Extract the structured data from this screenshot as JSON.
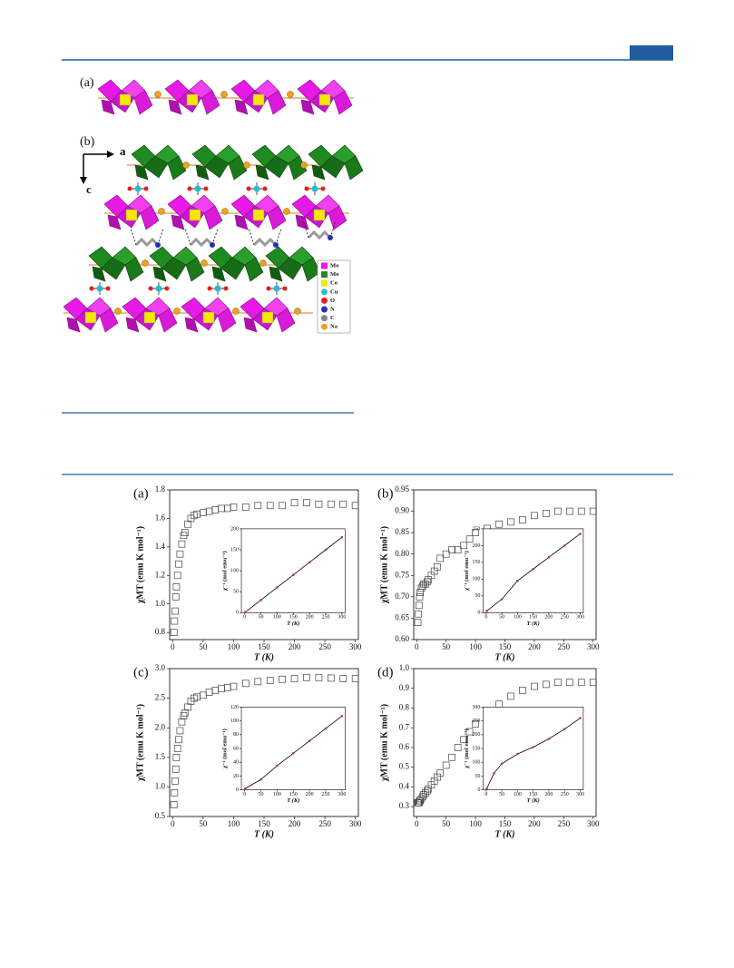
{
  "figure1": {
    "panel_a": "(a)",
    "panel_b": "(b)",
    "axis_a": "a",
    "axis_c": "c",
    "legend": [
      "Mo",
      "Mo",
      "Co",
      "Cu",
      "O",
      "N",
      "C",
      "Na"
    ]
  },
  "chart_data": [
    {
      "type": "scatter",
      "label": "(a)",
      "xlabel": "T (K)",
      "ylabel": "χMT (emu K mol⁻¹)",
      "marker_color": "#444444",
      "x": [
        2,
        3,
        4,
        5,
        6,
        8,
        10,
        12,
        15,
        18,
        20,
        25,
        30,
        35,
        40,
        50,
        60,
        70,
        80,
        90,
        100,
        120,
        140,
        160,
        180,
        200,
        220,
        240,
        260,
        280,
        300
      ],
      "values": [
        0.8,
        0.88,
        0.95,
        1.05,
        1.12,
        1.2,
        1.28,
        1.35,
        1.42,
        1.48,
        1.5,
        1.56,
        1.6,
        1.62,
        1.63,
        1.64,
        1.65,
        1.66,
        1.67,
        1.67,
        1.68,
        1.68,
        1.69,
        1.69,
        1.69,
        1.71,
        1.71,
        1.7,
        1.7,
        1.7,
        1.69
      ],
      "xlim": [
        -5,
        305
      ],
      "xticks": [
        0,
        50,
        100,
        150,
        200,
        250,
        300
      ],
      "ylim": [
        0.75,
        1.8
      ],
      "yticks": [
        0.8,
        {
          "value": 1.0,
          "label": "1.0"
        },
        1.2,
        1.4,
        1.6,
        1.8
      ],
      "inset": {
        "xlabel": "T (K)",
        "ylabel": "χ⁻¹ (mol emu⁻¹)",
        "line_color": "#000000",
        "marker_color": "#c0392b",
        "x": [
          2,
          50,
          100,
          150,
          200,
          250,
          300
        ],
        "values": [
          1,
          30,
          60,
          90,
          120,
          150,
          180
        ],
        "xlim": [
          -10,
          310
        ],
        "xticks": [
          0,
          50,
          100,
          150,
          200,
          250,
          300
        ],
        "ylim": [
          0,
          200
        ],
        "yticks": [
          0,
          50,
          100,
          150,
          200
        ]
      }
    },
    {
      "type": "scatter",
      "label": "(b)",
      "xlabel": "T (K)",
      "ylabel": "χMT (emu K mol⁻¹)",
      "marker_color": "#444444",
      "x": [
        2,
        3,
        4,
        5,
        6,
        8,
        10,
        12,
        15,
        18,
        20,
        25,
        30,
        35,
        40,
        50,
        60,
        70,
        80,
        90,
        100,
        120,
        140,
        160,
        180,
        200,
        220,
        240,
        260,
        280,
        300
      ],
      "values": [
        0.64,
        0.66,
        0.68,
        0.7,
        0.71,
        0.72,
        0.725,
        0.73,
        0.73,
        0.735,
        0.74,
        0.75,
        0.76,
        0.77,
        0.79,
        0.8,
        0.81,
        0.81,
        0.82,
        0.835,
        0.85,
        0.86,
        0.87,
        0.875,
        0.88,
        0.89,
        0.895,
        0.9,
        0.9,
        0.9,
        0.9
      ],
      "xlim": [
        -5,
        305
      ],
      "xticks": [
        0,
        50,
        100,
        150,
        200,
        250,
        300
      ],
      "ylim": [
        0.6,
        0.95
      ],
      "yticks": [
        {
          "value": 0.6,
          "label": "0.60"
        },
        0.65,
        {
          "value": 0.7,
          "label": "0.70"
        },
        0.75,
        {
          "value": 0.8,
          "label": "0.80"
        },
        0.85,
        {
          "value": 0.9,
          "label": "0.90"
        },
        0.95
      ],
      "inset": {
        "xlabel": "T (K)",
        "ylabel": "χ⁻¹ (mol emu⁻¹)",
        "line_color": "#000000",
        "marker_color": "#c0392b",
        "x": [
          2,
          50,
          100,
          150,
          200,
          250,
          300
        ],
        "values": [
          5,
          40,
          95,
          130,
          165,
          200,
          235
        ],
        "xlim": [
          -10,
          310
        ],
        "xticks": [
          0,
          50,
          100,
          150,
          200,
          250,
          300
        ],
        "ylim": [
          0,
          250
        ],
        "yticks": [
          0,
          50,
          100,
          150,
          200,
          250
        ]
      }
    },
    {
      "type": "scatter",
      "label": "(c)",
      "xlabel": "T (K)",
      "ylabel": "χMT (emu K mol⁻¹)",
      "marker_color": "#444444",
      "x": [
        2,
        3,
        4,
        5,
        6,
        8,
        10,
        12,
        15,
        18,
        20,
        25,
        30,
        35,
        40,
        50,
        60,
        70,
        80,
        90,
        100,
        120,
        140,
        160,
        180,
        200,
        220,
        240,
        260,
        280,
        300
      ],
      "values": [
        0.7,
        0.9,
        1.1,
        1.3,
        1.5,
        1.65,
        1.8,
        1.95,
        2.1,
        2.2,
        2.25,
        2.35,
        2.45,
        2.5,
        2.52,
        2.55,
        2.6,
        2.63,
        2.66,
        2.68,
        2.7,
        2.75,
        2.78,
        2.8,
        2.82,
        2.83,
        2.85,
        2.85,
        2.84,
        2.83,
        2.83
      ],
      "xlim": [
        -5,
        305
      ],
      "xticks": [
        0,
        50,
        100,
        150,
        200,
        250,
        300
      ],
      "ylim": [
        0.5,
        3.0
      ],
      "yticks": [
        0.5,
        {
          "value": 1.0,
          "label": "1.0"
        },
        1.5,
        {
          "value": 2.0,
          "label": "2.0"
        },
        2.5,
        {
          "value": 3.0,
          "label": "3.0"
        }
      ],
      "inset": {
        "xlabel": "T (K)",
        "ylabel": "χ⁻¹ (mol emu⁻¹)",
        "line_color": "#000000",
        "marker_color": "#c0392b",
        "x": [
          2,
          50,
          100,
          150,
          200,
          250,
          300
        ],
        "values": [
          2,
          15,
          35,
          53,
          71,
          89,
          107
        ],
        "xlim": [
          -10,
          310
        ],
        "xticks": [
          0,
          50,
          100,
          150,
          200,
          250,
          300
        ],
        "ylim": [
          0,
          120
        ],
        "yticks": [
          0,
          20,
          40,
          60,
          80,
          100,
          120
        ]
      }
    },
    {
      "type": "scatter",
      "label": "(d)",
      "xlabel": "T (K)",
      "ylabel": "χMT (emu K mol⁻¹)",
      "marker_color": "#444444",
      "x": [
        2,
        3,
        4,
        5,
        6,
        8,
        10,
        12,
        15,
        18,
        20,
        25,
        30,
        35,
        40,
        50,
        60,
        70,
        80,
        90,
        100,
        120,
        140,
        160,
        180,
        200,
        220,
        240,
        260,
        280,
        300
      ],
      "values": [
        0.32,
        0.32,
        0.32,
        0.33,
        0.33,
        0.34,
        0.35,
        0.36,
        0.37,
        0.38,
        0.39,
        0.41,
        0.43,
        0.45,
        0.47,
        0.51,
        0.55,
        0.6,
        0.64,
        0.68,
        0.72,
        0.77,
        0.82,
        0.86,
        0.89,
        0.91,
        0.92,
        0.93,
        0.93,
        0.93,
        0.93
      ],
      "xlim": [
        -5,
        305
      ],
      "xticks": [
        0,
        50,
        100,
        150,
        200,
        250,
        300
      ],
      "ylim": [
        0.25,
        1.0
      ],
      "yticks": [
        0.3,
        0.4,
        0.5,
        0.6,
        0.7,
        0.8,
        0.9,
        {
          "value": 1.0,
          "label": "1.0"
        }
      ],
      "inset": {
        "xlabel": "T (K)",
        "ylabel": "χ⁻¹ (mol emu⁻¹)",
        "line_color": "#000000",
        "marker_color": "#c0392b",
        "x": [
          2,
          25,
          50,
          100,
          150,
          200,
          250,
          300
        ],
        "values": [
          5,
          60,
          95,
          130,
          155,
          185,
          220,
          260
        ],
        "xlim": [
          -10,
          310
        ],
        "xticks": [
          0,
          50,
          100,
          150,
          200,
          250,
          300
        ],
        "ylim": [
          0,
          300
        ],
        "yticks": [
          0,
          50,
          100,
          150,
          200,
          250,
          300
        ]
      }
    }
  ]
}
